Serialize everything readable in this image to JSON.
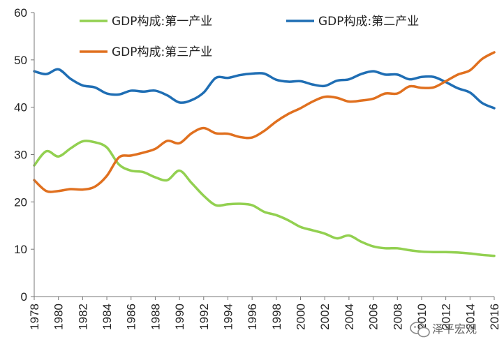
{
  "chart_data": {
    "type": "line",
    "title": "",
    "xlabel": "",
    "ylabel": "",
    "ylim": [
      0,
      60
    ],
    "yticks": [
      0,
      10,
      20,
      30,
      40,
      50,
      60
    ],
    "xlim": [
      1978,
      2016
    ],
    "xticks": [
      "1978",
      "1980",
      "1982",
      "1984",
      "1986",
      "1988",
      "1990",
      "1992",
      "1994",
      "1996",
      "1998",
      "2000",
      "2002",
      "2004",
      "2006",
      "2008",
      "2010",
      "2012",
      "2014",
      "2016"
    ],
    "grid": false,
    "legend_position": "top",
    "x": [
      1978,
      1979,
      1980,
      1981,
      1982,
      1983,
      1984,
      1985,
      1986,
      1987,
      1988,
      1989,
      1990,
      1991,
      1992,
      1993,
      1994,
      1995,
      1996,
      1997,
      1998,
      1999,
      2000,
      2001,
      2002,
      2003,
      2004,
      2005,
      2006,
      2007,
      2008,
      2009,
      2010,
      2011,
      2012,
      2013,
      2014,
      2015,
      2016
    ],
    "series": [
      {
        "name": "GDP构成:第一产业",
        "color": "#92D050",
        "values": [
          27.7,
          30.7,
          29.6,
          31.3,
          32.8,
          32.6,
          31.5,
          27.9,
          26.6,
          26.3,
          25.2,
          24.6,
          26.6,
          24.0,
          21.3,
          19.3,
          19.5,
          19.6,
          19.3,
          17.9,
          17.2,
          16.1,
          14.7,
          14.0,
          13.3,
          12.3,
          12.9,
          11.6,
          10.6,
          10.2,
          10.2,
          9.8,
          9.5,
          9.4,
          9.4,
          9.3,
          9.1,
          8.8,
          8.6
        ]
      },
      {
        "name": "GDP构成:第二产业",
        "color": "#1F6EB4",
        "values": [
          47.6,
          47.0,
          48.0,
          46.0,
          44.6,
          44.2,
          42.9,
          42.7,
          43.5,
          43.3,
          43.5,
          42.5,
          41.0,
          41.5,
          43.1,
          46.2,
          46.2,
          46.8,
          47.1,
          47.1,
          45.8,
          45.4,
          45.5,
          44.8,
          44.5,
          45.6,
          45.9,
          47.0,
          47.6,
          46.9,
          46.9,
          45.9,
          46.4,
          46.4,
          45.3,
          44.0,
          43.1,
          40.9,
          39.8
        ]
      },
      {
        "name": "GDP构成:第三产业",
        "color": "#E0701F",
        "values": [
          24.6,
          22.3,
          22.3,
          22.7,
          22.6,
          23.2,
          25.5,
          29.4,
          29.8,
          30.4,
          31.2,
          32.9,
          32.4,
          34.5,
          35.6,
          34.5,
          34.4,
          33.7,
          33.6,
          35.0,
          37.0,
          38.6,
          39.8,
          41.2,
          42.2,
          42.0,
          41.2,
          41.4,
          41.8,
          42.9,
          42.9,
          44.4,
          44.1,
          44.2,
          45.5,
          46.9,
          47.8,
          50.2,
          51.6
        ]
      }
    ]
  },
  "watermark": {
    "icon": "wechat-icon",
    "text": "泽平宏观"
  }
}
